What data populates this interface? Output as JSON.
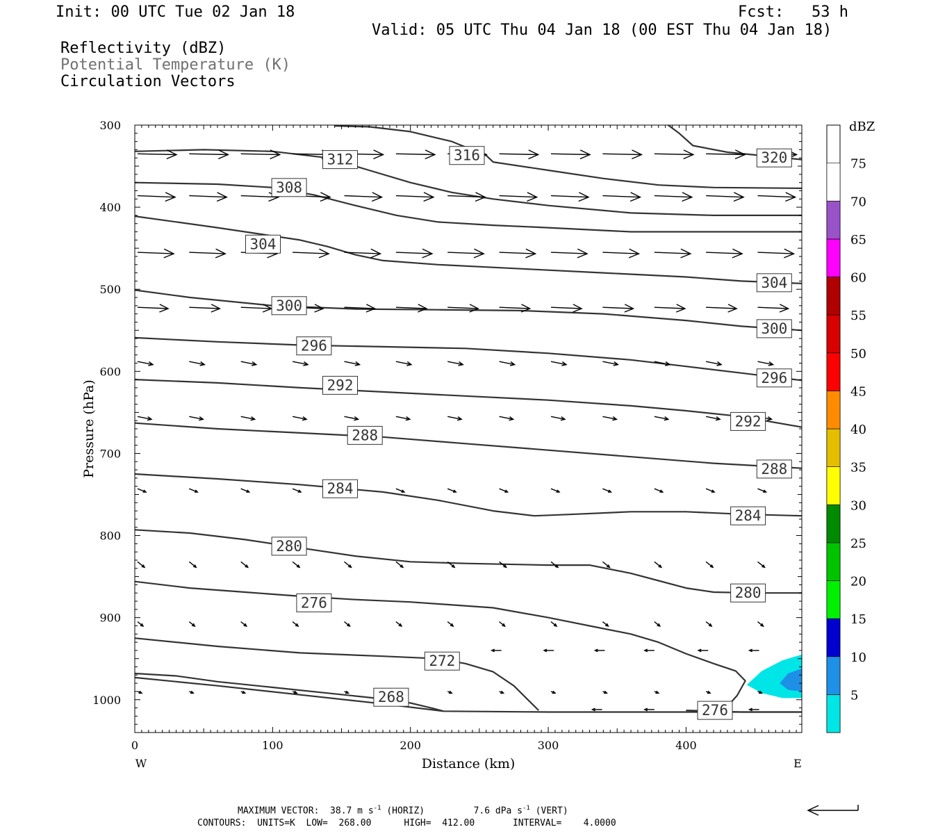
{
  "header": {
    "init": "Init: 00 UTC Tue 02 Jan 18",
    "fcst": "Fcst:   53 h",
    "valid": "Valid: 05 UTC Thu 04 Jan 18 (00 EST Thu 04 Jan 18)",
    "fields": [
      {
        "text": "Reflectivity (dBZ)",
        "color": "#000000"
      },
      {
        "text": "Potential Temperature (K)",
        "color": "#707070"
      },
      {
        "text": "Circulation Vectors",
        "color": "#000000"
      }
    ]
  },
  "footer": {
    "max_vector_prefix": "MAXIMUM VECTOR:  38.7 m s",
    "max_vector_mid": " (HORIZ)         7.6 dPa s",
    "max_vector_suffix": " (VERT)",
    "exponent": "-1",
    "contours": "CONTOURS:  UNITS=K  LOW=  268.00      HIGH=  412.00       INTERVAL=    4.0000"
  },
  "colors": {
    "contour": "#333333",
    "vector": "#000000",
    "refl_5": "#00e6e6",
    "refl_10": "#1e90e6"
  },
  "chart_data": {
    "type": "vertical-cross-section",
    "xlabel": "Distance (km)",
    "ylabel": "Pressure (hPa)",
    "xlim": [
      0,
      484
    ],
    "ylim": [
      1040,
      300
    ],
    "y_scale": "linear, inverted (pressure)",
    "x_ticks": [
      0,
      100,
      200,
      300,
      400
    ],
    "y_ticks": [
      300,
      400,
      500,
      600,
      700,
      800,
      900,
      1000
    ],
    "x_end_labels": {
      "left": "W",
      "right": "E"
    },
    "colorbar": {
      "title": "dBZ",
      "levels": [
        5,
        10,
        15,
        20,
        25,
        30,
        35,
        40,
        45,
        50,
        55,
        60,
        65,
        70,
        75
      ],
      "colors": [
        "#00e6e6",
        "#1e90e6",
        "#0000d0",
        "#00f000",
        "#00c400",
        "#008a00",
        "#ffff00",
        "#e6be00",
        "#ff8c00",
        "#ff0000",
        "#d80000",
        "#b00000",
        "#ff00ff",
        "#9a52c8",
        "#ffffff"
      ]
    },
    "theta_contours": [
      {
        "value": 268,
        "points": [
          [
            0,
            968
          ],
          [
            30,
            971
          ],
          [
            60,
            978
          ],
          [
            100,
            985
          ],
          [
            140,
            992
          ],
          [
            180,
            999
          ],
          [
            200,
            1004
          ],
          [
            215,
            1010
          ],
          [
            224,
            1014
          ]
        ]
      },
      {
        "value": 268,
        "points": [
          [
            0,
            973
          ],
          [
            60,
            983
          ],
          [
            120,
            994
          ],
          [
            180,
            1005
          ],
          [
            224,
            1014
          ],
          [
            300,
            1015
          ],
          [
            400,
            1015
          ],
          [
            484,
            1015
          ]
        ]
      },
      {
        "value": 272,
        "points": [
          [
            0,
            925
          ],
          [
            60,
            935
          ],
          [
            120,
            943
          ],
          [
            180,
            947
          ],
          [
            220,
            950
          ],
          [
            240,
            956
          ],
          [
            260,
            966
          ],
          [
            275,
            983
          ],
          [
            287,
            1003
          ],
          [
            293,
            1013
          ]
        ]
      },
      {
        "value": 276,
        "points": [
          [
            0,
            856
          ],
          [
            40,
            864
          ],
          [
            80,
            869
          ],
          [
            120,
            874
          ],
          [
            160,
            878
          ],
          [
            200,
            881
          ],
          [
            260,
            888
          ],
          [
            300,
            900
          ],
          [
            330,
            910
          ],
          [
            360,
            920
          ],
          [
            380,
            930
          ],
          [
            400,
            944
          ],
          [
            420,
            956
          ],
          [
            436,
            965
          ],
          [
            443,
            977
          ],
          [
            437,
            995
          ],
          [
            430,
            1008
          ]
        ]
      },
      {
        "value": 276,
        "label_only": true,
        "points": [
          [
            400,
            1013
          ],
          [
            440,
            1015
          ],
          [
            484,
            1015
          ]
        ]
      },
      {
        "value": 280,
        "points": [
          [
            0,
            793
          ],
          [
            40,
            797
          ],
          [
            80,
            805
          ],
          [
            120,
            815
          ],
          [
            160,
            825
          ],
          [
            200,
            832
          ],
          [
            240,
            834
          ],
          [
            300,
            836
          ],
          [
            330,
            836
          ],
          [
            360,
            846
          ],
          [
            380,
            855
          ],
          [
            400,
            864
          ],
          [
            420,
            869
          ],
          [
            450,
            870
          ],
          [
            484,
            870
          ]
        ]
      },
      {
        "value": 284,
        "points": [
          [
            0,
            725
          ],
          [
            60,
            731
          ],
          [
            120,
            738
          ],
          [
            180,
            747
          ],
          [
            220,
            757
          ],
          [
            260,
            770
          ],
          [
            290,
            776
          ],
          [
            320,
            774
          ],
          [
            360,
            771
          ],
          [
            400,
            771
          ],
          [
            440,
            774
          ],
          [
            484,
            776
          ]
        ]
      },
      {
        "value": 288,
        "points": [
          [
            0,
            663
          ],
          [
            60,
            670
          ],
          [
            120,
            675
          ],
          [
            180,
            680
          ],
          [
            240,
            688
          ],
          [
            300,
            696
          ],
          [
            360,
            704
          ],
          [
            420,
            712
          ],
          [
            484,
            718
          ]
        ]
      },
      {
        "value": 292,
        "points": [
          [
            0,
            610
          ],
          [
            60,
            614
          ],
          [
            120,
            620
          ],
          [
            180,
            625
          ],
          [
            240,
            630
          ],
          [
            300,
            635
          ],
          [
            360,
            642
          ],
          [
            400,
            648
          ],
          [
            440,
            655
          ],
          [
            484,
            668
          ]
        ]
      },
      {
        "value": 296,
        "points": [
          [
            0,
            559
          ],
          [
            60,
            564
          ],
          [
            120,
            568
          ],
          [
            180,
            570
          ],
          [
            240,
            572
          ],
          [
            300,
            578
          ],
          [
            360,
            586
          ],
          [
            400,
            594
          ],
          [
            440,
            602
          ],
          [
            484,
            611
          ]
        ]
      },
      {
        "value": 300,
        "points": [
          [
            0,
            501
          ],
          [
            40,
            510
          ],
          [
            100,
            520
          ],
          [
            160,
            524
          ],
          [
            220,
            525
          ],
          [
            280,
            526
          ],
          [
            340,
            530
          ],
          [
            400,
            538
          ],
          [
            440,
            545
          ],
          [
            484,
            550
          ]
        ]
      },
      {
        "value": 304,
        "points": [
          [
            0,
            411
          ],
          [
            60,
            425
          ],
          [
            120,
            440
          ],
          [
            140,
            448
          ],
          [
            160,
            458
          ],
          [
            180,
            465
          ],
          [
            220,
            470
          ],
          [
            280,
            475
          ],
          [
            340,
            480
          ],
          [
            400,
            485
          ],
          [
            440,
            490
          ],
          [
            484,
            493
          ]
        ]
      },
      {
        "value": 308,
        "points": [
          [
            0,
            370
          ],
          [
            60,
            372
          ],
          [
            100,
            376
          ],
          [
            130,
            385
          ],
          [
            160,
            398
          ],
          [
            190,
            410
          ],
          [
            220,
            418
          ],
          [
            260,
            422
          ],
          [
            300,
            425
          ],
          [
            360,
            430
          ],
          [
            420,
            430
          ],
          [
            484,
            430
          ]
        ]
      },
      {
        "value": 312,
        "points": [
          [
            0,
            332
          ],
          [
            50,
            330
          ],
          [
            100,
            332
          ],
          [
            140,
            340
          ],
          [
            170,
            355
          ],
          [
            200,
            370
          ],
          [
            230,
            382
          ],
          [
            260,
            390
          ],
          [
            300,
            398
          ],
          [
            360,
            407
          ],
          [
            420,
            410
          ],
          [
            484,
            410
          ]
        ]
      },
      {
        "value": 316,
        "points": [
          [
            145,
            301
          ],
          [
            170,
            302
          ],
          [
            200,
            308
          ],
          [
            230,
            320
          ],
          [
            255,
            337
          ],
          [
            260,
            345
          ],
          [
            300,
            355
          ],
          [
            340,
            365
          ],
          [
            380,
            373
          ],
          [
            420,
            376
          ],
          [
            484,
            377
          ]
        ]
      },
      {
        "value": 320,
        "points": [
          [
            387,
            300
          ],
          [
            395,
            310
          ],
          [
            405,
            325
          ],
          [
            430,
            333
          ],
          [
            460,
            338
          ],
          [
            484,
            342
          ]
        ]
      }
    ],
    "contour_labels": [
      {
        "value": 268,
        "x": 186,
        "p": 997
      },
      {
        "value": 272,
        "x": 223,
        "p": 953
      },
      {
        "value": 276,
        "x": 130,
        "p": 882
      },
      {
        "value": 276,
        "x": 421,
        "p": 1013
      },
      {
        "value": 280,
        "x": 112,
        "p": 813
      },
      {
        "value": 280,
        "x": 445,
        "p": 870
      },
      {
        "value": 284,
        "x": 149,
        "p": 743
      },
      {
        "value": 284,
        "x": 445,
        "p": 776
      },
      {
        "value": 288,
        "x": 167,
        "p": 678
      },
      {
        "value": 288,
        "x": 464,
        "p": 719
      },
      {
        "value": 292,
        "x": 149,
        "p": 617
      },
      {
        "value": 292,
        "x": 445,
        "p": 661
      },
      {
        "value": 296,
        "x": 130,
        "p": 569
      },
      {
        "value": 296,
        "x": 464,
        "p": 608
      },
      {
        "value": 300,
        "x": 112,
        "p": 520
      },
      {
        "value": 300,
        "x": 464,
        "p": 548
      },
      {
        "value": 304,
        "x": 93,
        "p": 445
      },
      {
        "value": 304,
        "x": 464,
        "p": 492
      },
      {
        "value": 308,
        "x": 112,
        "p": 376
      },
      {
        "value": 312,
        "x": 149,
        "p": 342
      },
      {
        "value": 316,
        "x": 241,
        "p": 337
      },
      {
        "value": 320,
        "x": 464,
        "p": 340
      }
    ],
    "reflectivity_areas": [
      {
        "dbz": 5,
        "points": [
          [
            444,
            982
          ],
          [
            455,
            965
          ],
          [
            470,
            952
          ],
          [
            484,
            945
          ],
          [
            484,
            998
          ],
          [
            470,
            998
          ],
          [
            455,
            992
          ]
        ]
      },
      {
        "dbz": 10,
        "points": [
          [
            468,
            980
          ],
          [
            474,
            968
          ],
          [
            484,
            962
          ],
          [
            484,
            990
          ],
          [
            474,
            988
          ]
        ]
      }
    ],
    "vector_rows": [
      {
        "p": 335,
        "len": 56,
        "dy": 0.005
      },
      {
        "p": 386,
        "len": 54,
        "dy": 0.01
      },
      {
        "p": 455,
        "len": 52,
        "dy": 0.01
      },
      {
        "p": 522,
        "len": 44,
        "dy": 0.01
      },
      {
        "p": 588,
        "len": 22,
        "dy": 0.05
      },
      {
        "p": 655,
        "len": 20,
        "dy": 0.05
      },
      {
        "p": 743,
        "len": 12,
        "dy": 0.1
      },
      {
        "p": 832,
        "len": 10,
        "dy": 0.2
      },
      {
        "p": 905,
        "len": 8,
        "dy": 0.2
      },
      {
        "p": 990,
        "len": 6,
        "dy": 0.1
      }
    ],
    "easterly_vectors": [
      {
        "x": 262,
        "p": 940
      },
      {
        "x": 300,
        "p": 940
      },
      {
        "x": 337,
        "p": 940
      },
      {
        "x": 373,
        "p": 940
      },
      {
        "x": 412,
        "p": 940
      },
      {
        "x": 449,
        "p": 940
      },
      {
        "x": 335,
        "p": 1012
      },
      {
        "x": 373,
        "p": 1012
      },
      {
        "x": 412,
        "p": 1012
      },
      {
        "x": 449,
        "p": 1012
      }
    ]
  }
}
